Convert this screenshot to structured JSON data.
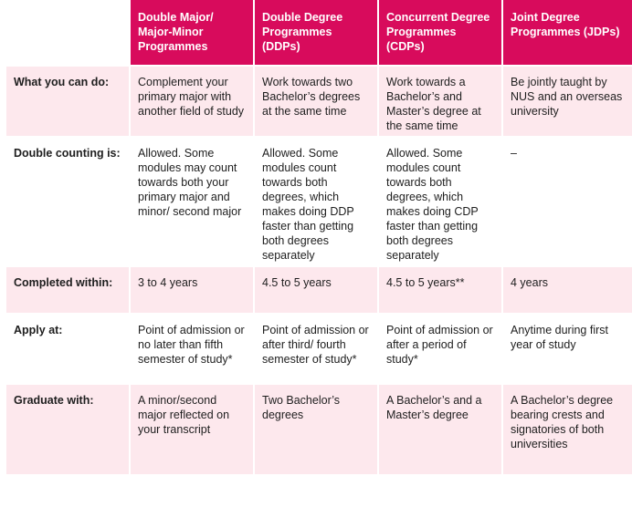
{
  "headers": [
    "",
    "Double Major/ Major-Minor Programmes",
    "Double Degree Programmes (DDPs)",
    "Concurrent Degree Programmes (CDPs)",
    "Joint Degree Programmes (JDPs)"
  ],
  "rows": [
    {
      "label": "What you can do:",
      "cells": [
        "Complement your primary major with another field of study",
        "Work towards two Bachelor’s degrees at the same time",
        "Work towards a Bachelor’s and Master’s degree at the same time",
        "Be jointly taught by NUS and an overseas university"
      ]
    },
    {
      "label": "Double counting is:",
      "cells": [
        "Allowed. Some modules may count towards both your primary major and minor/ second major",
        "Allowed. Some modules count towards both degrees, which makes doing DDP faster than getting both degrees separately",
        "Allowed. Some modules count towards both degrees, which makes doing CDP faster than getting both degrees separately",
        "–"
      ]
    },
    {
      "label": "Completed within:",
      "cells": [
        "3 to 4 years",
        "4.5 to 5 years",
        "4.5 to 5 years**",
        "4 years"
      ]
    },
    {
      "label": "Apply at:",
      "cells": [
        "Point of admission or no later than fifth semester of study*",
        "Point of admission or after third/ fourth semester of study*",
        "Point of admission or after a period of study*",
        "Anytime during first year of study"
      ]
    },
    {
      "label": "Graduate with:",
      "cells": [
        "A minor/second major reflected on your transcript",
        "Two Bachelor’s degrees",
        "A Bachelor’s and a Master’s degree",
        "A Bachelor’s degree bearing crests and signatories of both universities"
      ]
    }
  ],
  "colors": {
    "header_bg": "#d80b5c",
    "row_tint": "#fde8ed"
  }
}
